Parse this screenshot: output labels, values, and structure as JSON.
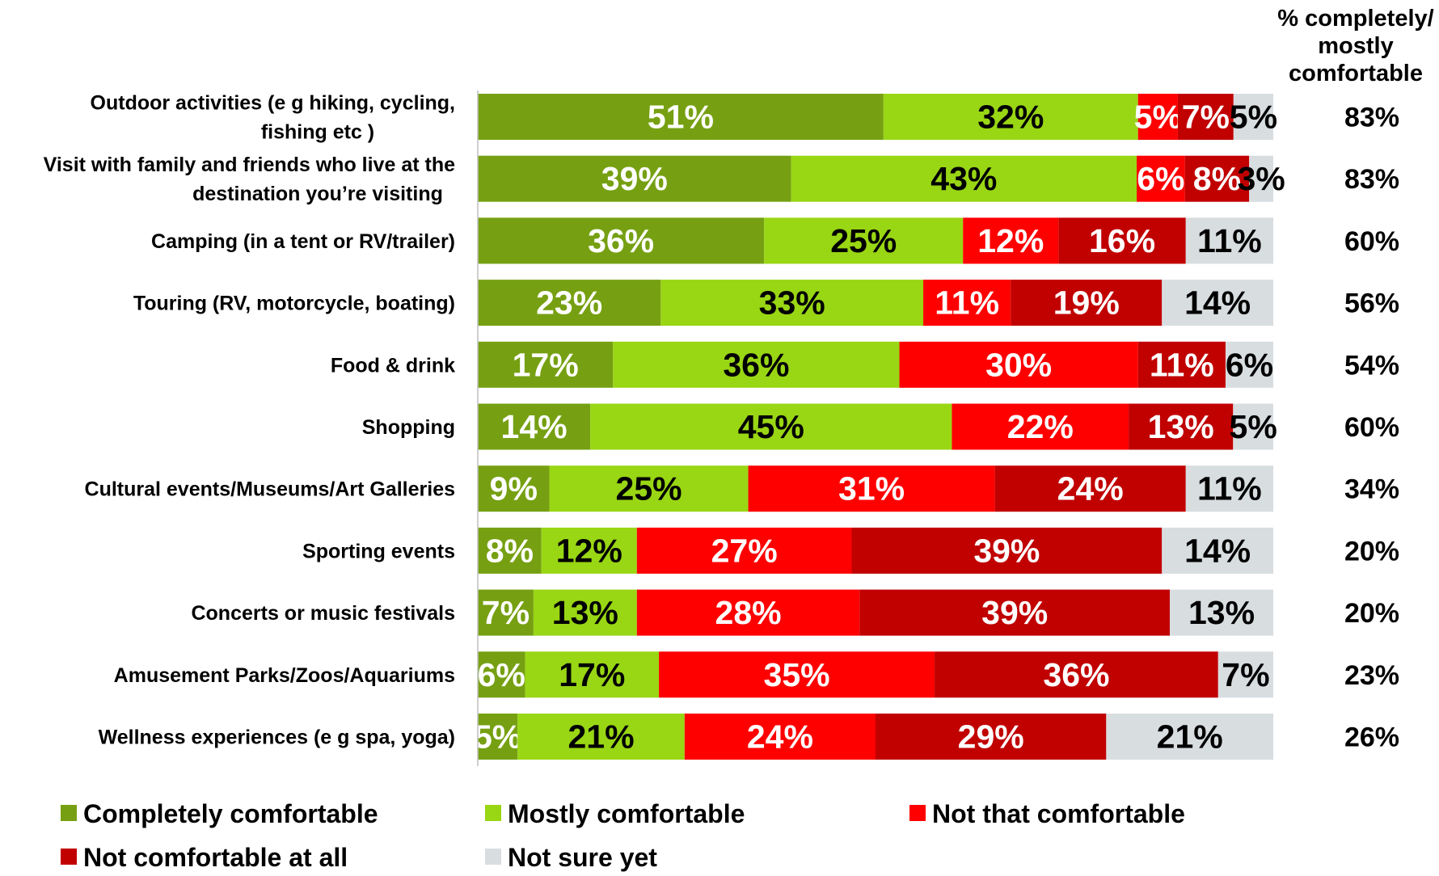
{
  "chart_data": {
    "type": "bar",
    "stacked": true,
    "orientation": "horizontal",
    "categories": [
      [
        "Outdoor activities (e g  hiking, cycling,",
        "fishing etc )"
      ],
      [
        "Visit with family and friends who live at the",
        "destination you’re visiting"
      ],
      [
        "Camping (in a tent or RV/trailer)"
      ],
      [
        "Touring (RV, motorcycle, boating)"
      ],
      [
        "Food & drink"
      ],
      [
        "Shopping"
      ],
      [
        "Cultural events/Museums/Art Galleries"
      ],
      [
        "Sporting events"
      ],
      [
        "Concerts or music festivals"
      ],
      [
        "Amusement Parks/Zoos/Aquariums"
      ],
      [
        "Wellness experiences (e g  spa, yoga)"
      ]
    ],
    "series": [
      {
        "name": "Completely comfortable",
        "color": "#76a012",
        "label_color": "#ffffff",
        "values": [
          51,
          39,
          36,
          23,
          17,
          14,
          9,
          8,
          7,
          6,
          5
        ]
      },
      {
        "name": "Mostly comfortable",
        "color": "#99d614",
        "label_color": "#000000",
        "values": [
          32,
          43,
          25,
          33,
          36,
          45,
          25,
          12,
          13,
          17,
          21
        ]
      },
      {
        "name": "Not that comfortable",
        "color": "#fe0000",
        "label_color": "#ffffff",
        "values": [
          5,
          6,
          12,
          11,
          30,
          22,
          31,
          27,
          28,
          35,
          24
        ]
      },
      {
        "name": "Not comfortable at all",
        "color": "#c10000",
        "label_color": "#ffffff",
        "values": [
          7,
          8,
          16,
          19,
          11,
          13,
          24,
          39,
          39,
          36,
          29
        ]
      },
      {
        "name": "Not sure yet",
        "color": "#d8dde0",
        "label_color": "#000000",
        "values": [
          5,
          3,
          11,
          14,
          6,
          5,
          11,
          14,
          13,
          7,
          21
        ]
      }
    ],
    "side_column": {
      "header": [
        "% completely/",
        "mostly",
        "comfortable"
      ],
      "values": [
        "83%",
        "83%",
        "60%",
        "56%",
        "54%",
        "60%",
        "34%",
        "20%",
        "20%",
        "23%",
        "26%"
      ]
    },
    "legend_position": "bottom",
    "grid": false
  }
}
